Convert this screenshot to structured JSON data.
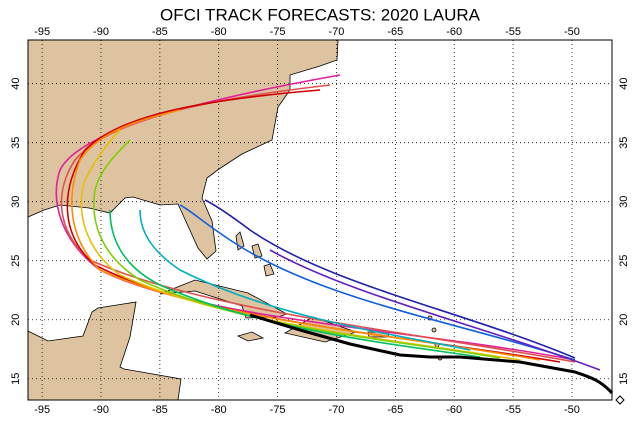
{
  "title": "OFCI TRACK FORECASTS: 2020 LAURA",
  "lon_lim": [
    -96.2,
    -46.6
  ],
  "lat_lim": [
    13.2,
    43.7
  ],
  "lon_ticks": [
    -95,
    -90,
    -85,
    -80,
    -75,
    -70,
    -65,
    -60,
    -55,
    -50
  ],
  "lat_ticks": [
    15,
    20,
    25,
    30,
    35,
    40
  ]
}
